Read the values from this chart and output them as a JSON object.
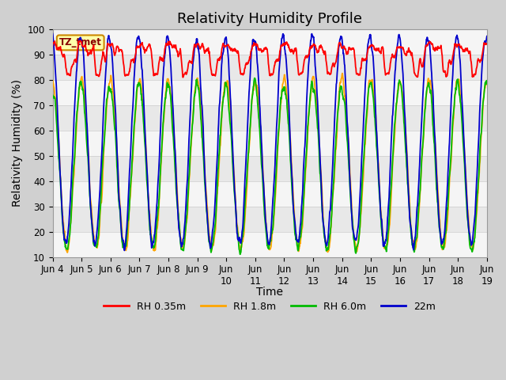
{
  "title": "Relativity Humidity Profile",
  "ylabel": "Relativity Humidity (%)",
  "xlabel": "Time",
  "ylim": [
    10,
    100
  ],
  "yticks": [
    10,
    20,
    30,
    40,
    50,
    60,
    70,
    80,
    90,
    100
  ],
  "xtick_labels": [
    "Jun 4",
    "Jun 5",
    "Jun 6",
    "Jun 7",
    "Jun 8",
    "Jun 9",
    "Jun\n10",
    "Jun\n11",
    "Jun\n12",
    "Jun\n13",
    "Jun\n14",
    "Jun\n15",
    "Jun\n16",
    "Jun\n17",
    "Jun\n18",
    "Jun\n19"
  ],
  "tz_label": "TZ_tmet",
  "legend_labels": [
    "RH 0.35m",
    "RH 1.8m",
    "RH 6.0m",
    "22m"
  ],
  "line_colors": [
    "#ff0000",
    "#ffa500",
    "#00bb00",
    "#0000cc"
  ],
  "fig_bg_color": "#d0d0d0",
  "plot_bg_color": "#e8e8e8",
  "band_light": "#e8e8e8",
  "band_white": "#f5f5f5",
  "title_fontsize": 13,
  "axis_label_fontsize": 10,
  "tick_fontsize": 8.5
}
